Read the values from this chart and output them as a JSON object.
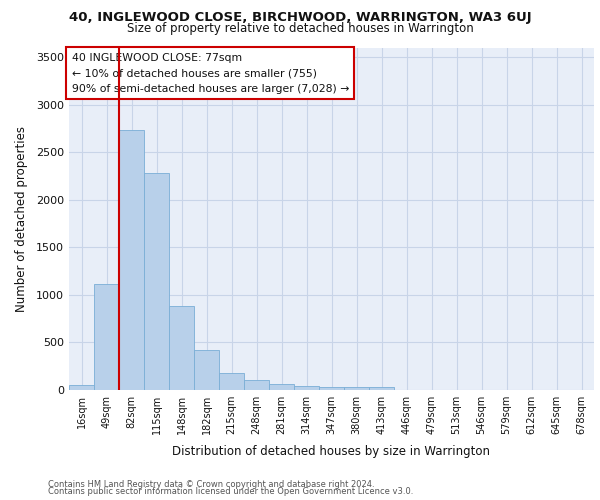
{
  "title1": "40, INGLEWOOD CLOSE, BIRCHWOOD, WARRINGTON, WA3 6UJ",
  "title2": "Size of property relative to detached houses in Warrington",
  "xlabel": "Distribution of detached houses by size in Warrington",
  "ylabel": "Number of detached properties",
  "categories": [
    "16sqm",
    "49sqm",
    "82sqm",
    "115sqm",
    "148sqm",
    "182sqm",
    "215sqm",
    "248sqm",
    "281sqm",
    "314sqm",
    "347sqm",
    "380sqm",
    "413sqm",
    "446sqm",
    "479sqm",
    "513sqm",
    "546sqm",
    "579sqm",
    "612sqm",
    "645sqm",
    "678sqm"
  ],
  "values": [
    55,
    1110,
    2730,
    2280,
    880,
    420,
    175,
    100,
    60,
    45,
    35,
    28,
    28,
    0,
    0,
    0,
    0,
    0,
    0,
    0,
    0
  ],
  "bar_color": "#b8d0ea",
  "bar_edge_color": "#7aaed6",
  "red_line_index": 2,
  "annotation_title": "40 INGLEWOOD CLOSE: 77sqm",
  "annotation_line1": "← 10% of detached houses are smaller (755)",
  "annotation_line2": "90% of semi-detached houses are larger (7,028) →",
  "annotation_box_color": "#ffffff",
  "annotation_box_edge": "#cc0000",
  "red_line_color": "#cc0000",
  "grid_color": "#c8d4e8",
  "bg_color": "#e8eef8",
  "footer1": "Contains HM Land Registry data © Crown copyright and database right 2024.",
  "footer2": "Contains public sector information licensed under the Open Government Licence v3.0.",
  "ylim": [
    0,
    3600
  ],
  "yticks": [
    0,
    500,
    1000,
    1500,
    2000,
    2500,
    3000,
    3500
  ]
}
